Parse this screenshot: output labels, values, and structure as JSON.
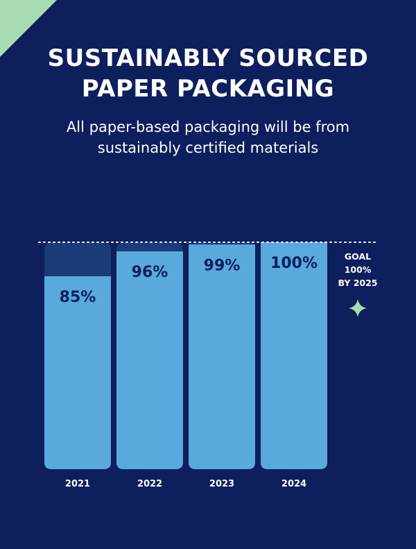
{
  "header": {
    "title_line1": "SUSTAINABLY SOURCED",
    "title_line2": "PAPER PACKAGING",
    "subtitle_line1": "All paper-based packaging will be from",
    "subtitle_line2": "sustainably certified materials"
  },
  "colors": {
    "background": "#0d1f5c",
    "bar_fill": "#5aa9dd",
    "bar_track": "#1b3a78",
    "corner_accent": "#a8dcb0",
    "sparkle": "#a8dcb0"
  },
  "chart_data": {
    "type": "bar",
    "title": "SUSTAINABLY SOURCED PAPER PACKAGING",
    "categories": [
      "2021",
      "2022",
      "2023",
      "2024"
    ],
    "values": [
      85,
      96,
      99,
      100
    ],
    "value_labels": [
      "85%",
      "96%",
      "99%",
      "100%"
    ],
    "ylim": [
      0,
      100
    ],
    "xlabel": "",
    "ylabel": "",
    "goal": {
      "value": 100,
      "label_lines": [
        "GOAL",
        "100%",
        "BY 2025"
      ]
    }
  }
}
